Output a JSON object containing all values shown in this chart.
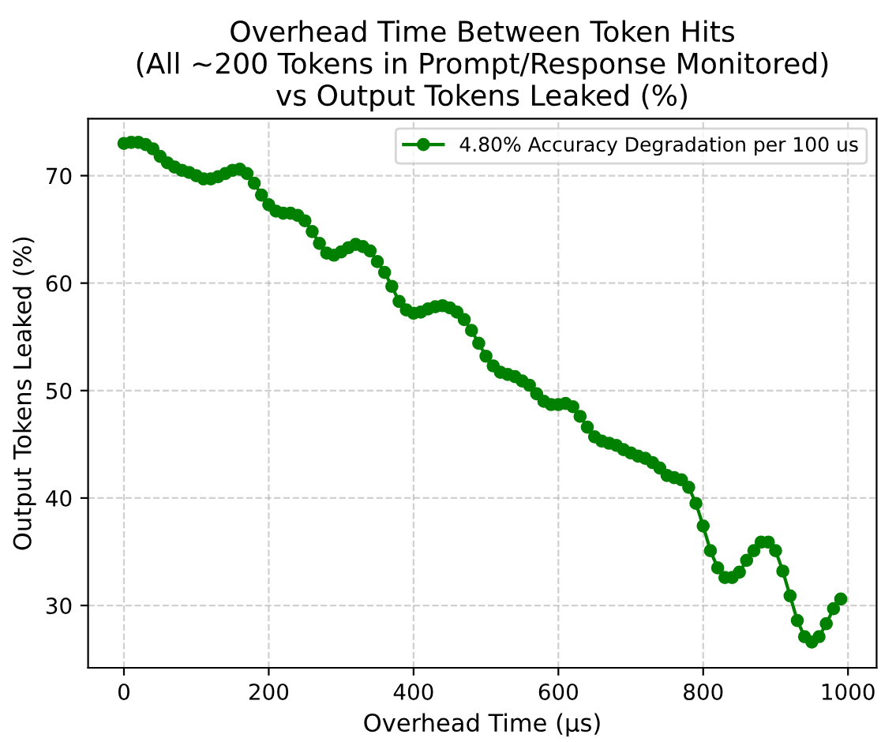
{
  "chart_data": {
    "type": "line",
    "title": "Overhead Time Between Token Hits\n(All ~200 Tokens in Prompt/Response Monitored)\nvs Output Tokens Leaked (%)",
    "xlabel": "Overhead Time (µs)",
    "ylabel": "Output Tokens Leaked (%)",
    "x": [
      0,
      10,
      20,
      30,
      40,
      50,
      60,
      70,
      80,
      90,
      100,
      110,
      120,
      130,
      140,
      150,
      160,
      170,
      180,
      190,
      200,
      210,
      220,
      230,
      240,
      250,
      260,
      270,
      280,
      290,
      300,
      310,
      320,
      330,
      340,
      350,
      360,
      370,
      380,
      390,
      400,
      410,
      420,
      430,
      440,
      450,
      460,
      470,
      480,
      490,
      500,
      510,
      520,
      530,
      540,
      550,
      560,
      570,
      580,
      590,
      600,
      610,
      620,
      630,
      640,
      650,
      660,
      670,
      680,
      690,
      700,
      710,
      720,
      730,
      740,
      750,
      760,
      770,
      780,
      790,
      800,
      810,
      820,
      830,
      840,
      850,
      860,
      870,
      880,
      890,
      900,
      910,
      920,
      930,
      940,
      950,
      960,
      970,
      980,
      990
    ],
    "series": [
      {
        "name": "4.80% Accuracy Degradation per 100 us",
        "color": "#008000",
        "values": [
          73.0,
          73.1,
          73.1,
          72.9,
          72.5,
          71.8,
          71.2,
          70.8,
          70.5,
          70.3,
          70.0,
          69.7,
          69.7,
          69.9,
          70.2,
          70.5,
          70.6,
          70.2,
          69.3,
          68.2,
          67.3,
          66.7,
          66.5,
          66.5,
          66.3,
          65.8,
          64.8,
          63.7,
          62.8,
          62.6,
          62.9,
          63.3,
          63.6,
          63.4,
          63.0,
          62.0,
          61.0,
          59.7,
          58.3,
          57.5,
          57.2,
          57.3,
          57.6,
          57.8,
          57.9,
          57.7,
          57.3,
          56.6,
          55.6,
          54.4,
          53.2,
          52.3,
          51.7,
          51.5,
          51.3,
          50.9,
          50.5,
          49.7,
          49.0,
          48.7,
          48.7,
          48.8,
          48.5,
          47.6,
          46.6,
          45.7,
          45.3,
          45.1,
          44.9,
          44.5,
          44.2,
          43.9,
          43.7,
          43.3,
          42.8,
          42.1,
          41.9,
          41.7,
          41.0,
          39.5,
          37.4,
          35.1,
          33.5,
          32.6,
          32.6,
          33.1,
          34.2,
          35.1,
          35.9,
          35.9,
          35.1,
          33.2,
          30.9,
          28.6,
          27.1,
          26.6,
          27.1,
          28.3,
          29.7,
          30.6
        ]
      }
    ],
    "xlim": [
      -49.5,
      1039.5
    ],
    "xticks": [
      0,
      200,
      400,
      600,
      800,
      1000
    ],
    "ylim": [
      24.2,
      75.3
    ],
    "yticks": [
      30,
      40,
      50,
      60,
      70
    ],
    "grid": true,
    "legend": "top right",
    "marker": "circle",
    "line_style": "solid"
  }
}
